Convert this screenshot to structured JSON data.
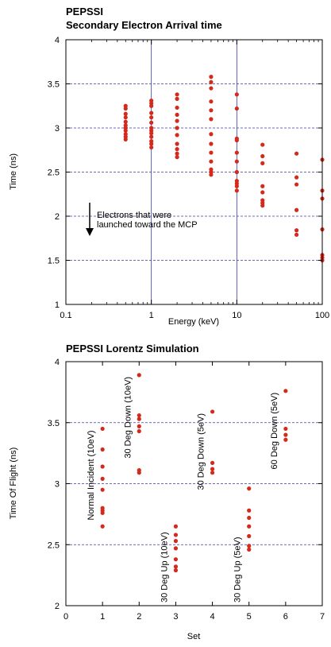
{
  "chart_data": [
    {
      "type": "scatter",
      "title": "PEPSSI",
      "subtitle": "Secondary Electron Arrival time",
      "xlabel": "Energy (keV)",
      "ylabel": "Time (ns)",
      "xscale": "log",
      "xlim": [
        0.1,
        100
      ],
      "ylim": [
        1,
        4
      ],
      "xticks": [
        "0.1",
        "1",
        "10",
        "100"
      ],
      "yticks": [
        "1",
        "1.5",
        "2",
        "2.5",
        "3",
        "3.5",
        "4"
      ],
      "grid": true,
      "marker_color": "#d42a1c",
      "annotation": "Electrons that were\nlaunched toward the MCP",
      "points": [
        [
          0.5,
          2.87
        ],
        [
          0.5,
          2.9
        ],
        [
          0.5,
          2.93
        ],
        [
          0.5,
          2.97
        ],
        [
          0.5,
          3.0
        ],
        [
          0.5,
          3.03
        ],
        [
          0.5,
          3.07
        ],
        [
          0.5,
          3.12
        ],
        [
          0.5,
          3.16
        ],
        [
          0.5,
          3.22
        ],
        [
          0.5,
          3.25
        ],
        [
          1,
          2.78
        ],
        [
          1,
          2.82
        ],
        [
          1,
          2.85
        ],
        [
          1,
          2.9
        ],
        [
          1,
          2.94
        ],
        [
          1,
          2.97
        ],
        [
          1,
          3.0
        ],
        [
          1,
          3.06
        ],
        [
          1,
          3.12
        ],
        [
          1,
          3.17
        ],
        [
          1,
          3.25
        ],
        [
          1,
          3.28
        ],
        [
          1,
          3.31
        ],
        [
          2,
          2.67
        ],
        [
          2,
          2.71
        ],
        [
          2,
          2.76
        ],
        [
          2,
          2.82
        ],
        [
          2,
          2.92
        ],
        [
          2,
          3.0
        ],
        [
          2,
          3.08
        ],
        [
          2,
          3.15
        ],
        [
          2,
          3.23
        ],
        [
          2,
          3.33
        ],
        [
          2,
          3.38
        ],
        [
          5,
          2.47
        ],
        [
          5,
          2.5
        ],
        [
          5,
          2.53
        ],
        [
          5,
          2.62
        ],
        [
          5,
          2.72
        ],
        [
          5,
          2.82
        ],
        [
          5,
          2.93
        ],
        [
          5,
          3.1
        ],
        [
          5,
          3.2
        ],
        [
          5,
          3.3
        ],
        [
          5,
          3.45
        ],
        [
          5,
          3.52
        ],
        [
          5,
          3.58
        ],
        [
          10,
          2.29
        ],
        [
          10,
          2.34
        ],
        [
          10,
          2.37
        ],
        [
          10,
          2.4
        ],
        [
          10,
          2.5
        ],
        [
          10,
          2.62
        ],
        [
          10,
          2.72
        ],
        [
          10,
          2.86
        ],
        [
          10,
          2.88
        ],
        [
          10,
          3.22
        ],
        [
          10,
          3.38
        ],
        [
          20,
          2.12
        ],
        [
          20,
          2.15
        ],
        [
          20,
          2.18
        ],
        [
          20,
          2.27
        ],
        [
          20,
          2.34
        ],
        [
          20,
          2.6
        ],
        [
          20,
          2.68
        ],
        [
          20,
          2.81
        ],
        [
          50,
          1.79
        ],
        [
          50,
          1.84
        ],
        [
          50,
          2.07
        ],
        [
          50,
          2.36
        ],
        [
          50,
          2.44
        ],
        [
          50,
          2.71
        ],
        [
          100,
          1.5
        ],
        [
          100,
          1.53
        ],
        [
          100,
          1.56
        ],
        [
          100,
          1.85
        ],
        [
          100,
          2.2
        ],
        [
          100,
          2.29
        ],
        [
          100,
          2.64
        ]
      ]
    },
    {
      "type": "scatter",
      "title": "PEPSSI Lorentz Simulation",
      "xlabel": "Set",
      "ylabel": "Time Of Flight (ns)",
      "xlim": [
        0,
        7
      ],
      "ylim": [
        2,
        4
      ],
      "xticks": [
        "0",
        "1",
        "2",
        "3",
        "4",
        "5",
        "6",
        "7"
      ],
      "yticks": [
        "2",
        "2.5",
        "3",
        "3.5",
        "4"
      ],
      "grid": true,
      "marker_color": "#d42a1c",
      "groups": [
        {
          "label": "Normal Incident (10eV)",
          "x": 1,
          "values": [
            2.65,
            2.76,
            2.78,
            2.8,
            2.95,
            3.04,
            3.14,
            3.28,
            3.45
          ]
        },
        {
          "label": "30 Deg Down (10eV)",
          "x": 2,
          "values": [
            3.09,
            3.11,
            3.43,
            3.47,
            3.53,
            3.56,
            3.89
          ]
        },
        {
          "label": "30 Deg Up (10eV)",
          "x": 3,
          "values": [
            2.29,
            2.32,
            2.38,
            2.47,
            2.53,
            2.58,
            2.65
          ]
        },
        {
          "label": "30 Deg Down (5eV)",
          "x": 4,
          "values": [
            3.09,
            3.12,
            3.17,
            3.59
          ]
        },
        {
          "label": "30 Deg Up (5eV)",
          "x": 5,
          "values": [
            2.46,
            2.49,
            2.57,
            2.65,
            2.72,
            2.78,
            2.96
          ]
        },
        {
          "label": "60 Deg Down (5eV)",
          "x": 6,
          "values": [
            3.36,
            3.4,
            3.45,
            3.76
          ]
        }
      ]
    }
  ]
}
